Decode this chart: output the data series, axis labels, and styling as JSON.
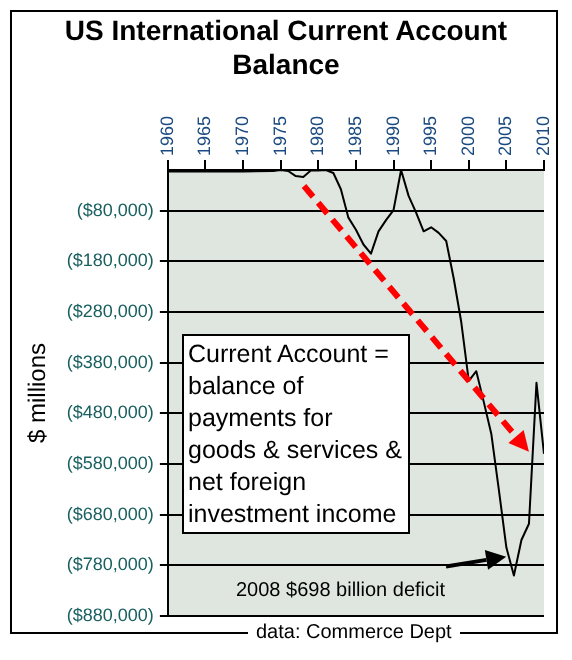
{
  "chart_data": {
    "type": "line",
    "title": "US International Current Account Balance",
    "ylabel": "$ millions",
    "xlim": [
      1960,
      2010
    ],
    "xticks": [
      1960,
      1965,
      1970,
      1975,
      1980,
      1985,
      1990,
      1995,
      2000,
      2005,
      2010
    ],
    "ylim": [
      -880000,
      0
    ],
    "yticks": [
      {
        "value": -80000,
        "label": "($80,000)"
      },
      {
        "value": -180000,
        "label": "($180,000)"
      },
      {
        "value": -280000,
        "label": "($280,000)"
      },
      {
        "value": -380000,
        "label": "($380,000)"
      },
      {
        "value": -480000,
        "label": "($480,000)"
      },
      {
        "value": -580000,
        "label": "($580,000)"
      },
      {
        "value": -680000,
        "label": "($680,000)"
      },
      {
        "value": -780000,
        "label": "($780,000)"
      },
      {
        "value": -880000,
        "label": "($880,000)"
      }
    ],
    "grid": "y",
    "legend": false,
    "marker": "none",
    "line_style": "solid",
    "series": [
      {
        "color": "#000000",
        "x": [
          1960,
          1965,
          1970,
          1974,
          1975,
          1976,
          1977,
          1978,
          1979,
          1980,
          1981,
          1982,
          1983,
          1984,
          1985,
          1986,
          1987,
          1988,
          1989,
          1990,
          1991,
          1992,
          1993,
          1994,
          1995,
          1996,
          1997,
          1998,
          1999,
          2000,
          2001,
          2002,
          2003,
          2004,
          2005,
          2006,
          2007,
          2008,
          2009,
          2010
        ],
        "values": [
          -3000,
          -3000,
          -3000,
          -2000,
          0,
          -2000,
          -12000,
          -14000,
          -1000,
          -1000,
          0,
          -6000,
          -38000,
          -94000,
          -118000,
          -147000,
          -165000,
          -121000,
          -99000,
          -79000,
          0,
          -51000,
          -84000,
          -121000,
          -113000,
          -124000,
          -140000,
          -214000,
          -300000,
          -416000,
          -397000,
          -458000,
          -521000,
          -631000,
          -745000,
          -800000,
          -730000,
          -698000,
          -420000,
          -560000
        ]
      }
    ],
    "annotations": [
      "Current Account = balance of payments for goods & services & net foreign investment income",
      "2008 $698 billion deficit",
      "data: Commerce Dept"
    ]
  }
}
